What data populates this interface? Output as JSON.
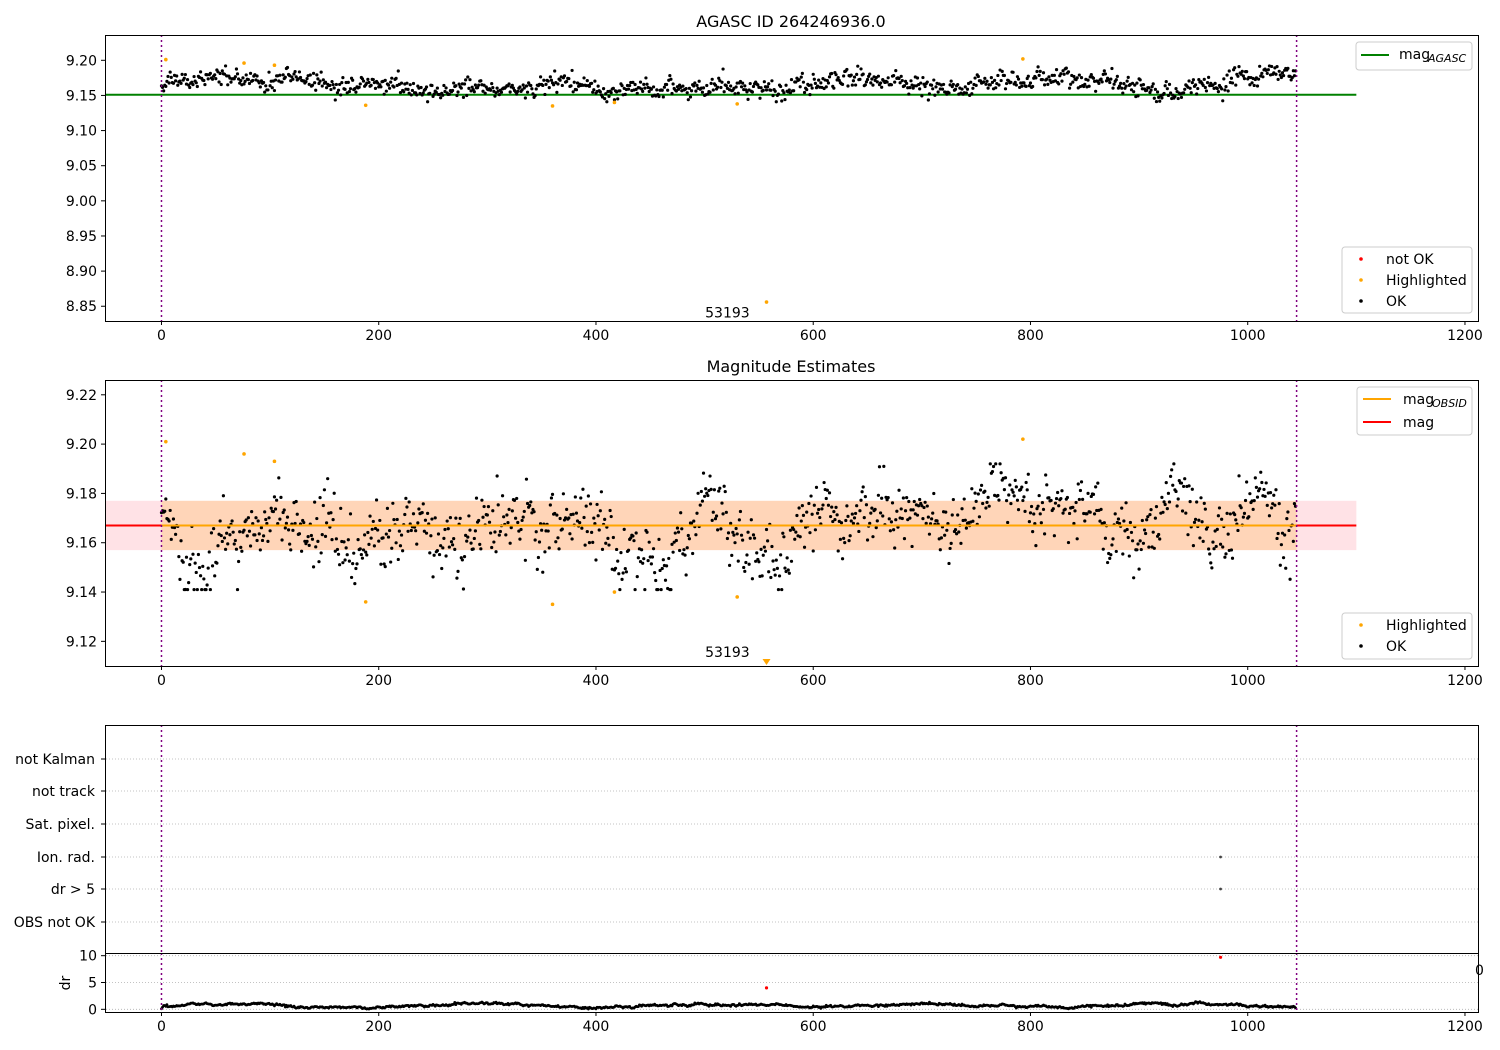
{
  "chart_data": [
    {
      "type": "scatter",
      "title": "AGASC ID 264246936.0",
      "xlabel": "",
      "ylabel": "",
      "xlim": [
        -52,
        1212
      ],
      "ylim": [
        8.829,
        9.236
      ],
      "xticks": [
        0,
        200,
        400,
        600,
        800,
        1000,
        1200
      ],
      "yticks": [
        8.85,
        8.9,
        8.95,
        9.0,
        9.05,
        9.1,
        9.15,
        9.2
      ],
      "ytick_labels": [
        "8.85",
        "8.90",
        "8.95",
        "9.00",
        "9.05",
        "9.10",
        "9.15",
        "9.20"
      ],
      "vlines": [
        0,
        1045
      ],
      "hline": {
        "name": "mag_AGASC",
        "y": 9.151,
        "x": [
          -52,
          1100
        ],
        "color": "#008000"
      },
      "annotation": {
        "text": "53193",
        "x": 521,
        "y": 8.84
      },
      "ok_series": {
        "name": "OK",
        "n": 1045,
        "center": 9.168,
        "spread": 0.008,
        "color": "#000000"
      },
      "highlighted": {
        "name": "Highlighted",
        "color": "#ffa500",
        "points": [
          [
            4,
            9.201
          ],
          [
            76,
            9.196
          ],
          [
            104,
            9.193
          ],
          [
            188,
            9.136
          ],
          [
            360,
            9.135
          ],
          [
            417,
            9.14
          ],
          [
            530,
            9.138
          ],
          [
            557,
            8.856
          ],
          [
            793,
            9.202
          ]
        ]
      },
      "not_ok": {
        "name": "not OK",
        "color": "#ff0000",
        "points": []
      },
      "legends": {
        "top": [
          {
            "label": "mag",
            "sub": "AGASC",
            "color": "#008000"
          }
        ],
        "bottom": [
          {
            "label": "not OK",
            "color": "#ff0000"
          },
          {
            "label": "Highlighted",
            "color": "#ffa500"
          },
          {
            "label": "OK",
            "color": "#000000"
          }
        ]
      }
    },
    {
      "type": "scatter",
      "title": "Magnitude Estimates",
      "xlabel": "",
      "ylabel": "",
      "xlim": [
        -52,
        1212
      ],
      "ylim": [
        9.11,
        9.226
      ],
      "xticks": [
        0,
        200,
        400,
        600,
        800,
        1000,
        1200
      ],
      "yticks": [
        9.12,
        9.14,
        9.16,
        9.18,
        9.2,
        9.22
      ],
      "ytick_labels": [
        "9.12",
        "9.14",
        "9.16",
        "9.18",
        "9.20",
        "9.22"
      ],
      "vlines": [
        0,
        1045
      ],
      "mag": {
        "name": "mag",
        "y": 9.167,
        "band": [
          9.157,
          9.177
        ],
        "x": [
          -52,
          1100
        ],
        "color": "#ff0000"
      },
      "mag_obsid": {
        "name": "mag_OBSID",
        "y": 9.167,
        "band": [
          9.157,
          9.177
        ],
        "x": [
          0,
          1045
        ],
        "color": "#ffa500"
      },
      "annotation": {
        "text": "53193",
        "x": 521,
        "y": 9.1145
      },
      "ok_series": {
        "name": "OK",
        "n": 1045,
        "center": 9.167,
        "spread": 0.008,
        "color": "#000000"
      },
      "highlighted": {
        "name": "Highlighted",
        "color": "#ffa500",
        "points": [
          [
            4,
            9.201
          ],
          [
            76,
            9.196
          ],
          [
            104,
            9.193
          ],
          [
            188,
            9.136
          ],
          [
            360,
            9.135
          ],
          [
            417,
            9.14
          ],
          [
            530,
            9.138
          ],
          [
            793,
            9.202
          ]
        ],
        "offscale_marker": {
          "x": 557,
          "direction": "down"
        }
      },
      "legends": {
        "top": [
          {
            "label": "mag",
            "sub": "OBSID",
            "color": "#ffa500"
          },
          {
            "label": "mag",
            "sub": "",
            "color": "#ff0000"
          }
        ],
        "bottom": [
          {
            "label": "Highlighted",
            "color": "#ffa500"
          },
          {
            "label": "OK",
            "color": "#000000"
          }
        ]
      }
    },
    {
      "type": "scatter",
      "title": "",
      "xlim": [
        -52,
        1212
      ],
      "flag_categories": [
        "not Kalman",
        "not track",
        "Sat. pixel.",
        "Ion. rad.",
        "dr > 5",
        "OBS not OK"
      ],
      "flag_points": [
        {
          "category": "Ion. rad.",
          "x": 975
        },
        {
          "category": "dr > 5",
          "x": 975
        }
      ],
      "vlines": [
        0,
        1045
      ]
    },
    {
      "type": "scatter",
      "title": "",
      "xlabel": "",
      "ylabel": "dr",
      "xlim": [
        -52,
        1212
      ],
      "ylim": [
        -0.5,
        10.5
      ],
      "xticks": [
        0,
        200,
        400,
        600,
        800,
        1000,
        1200
      ],
      "yticks": [
        0,
        5,
        10
      ],
      "ytick_labels": [
        "0",
        "5",
        "10"
      ],
      "vlines": [
        0,
        1045
      ],
      "dr_series": {
        "name": "dr",
        "n": 1045,
        "center": 0.7,
        "spread": 0.25,
        "color": "#000000"
      },
      "outliers": [
        {
          "x": 557,
          "y": 4.0,
          "color": "#ff0000"
        },
        {
          "x": 975,
          "y": 9.7,
          "color": "#ff0000"
        }
      ],
      "edge_label": "0"
    }
  ]
}
